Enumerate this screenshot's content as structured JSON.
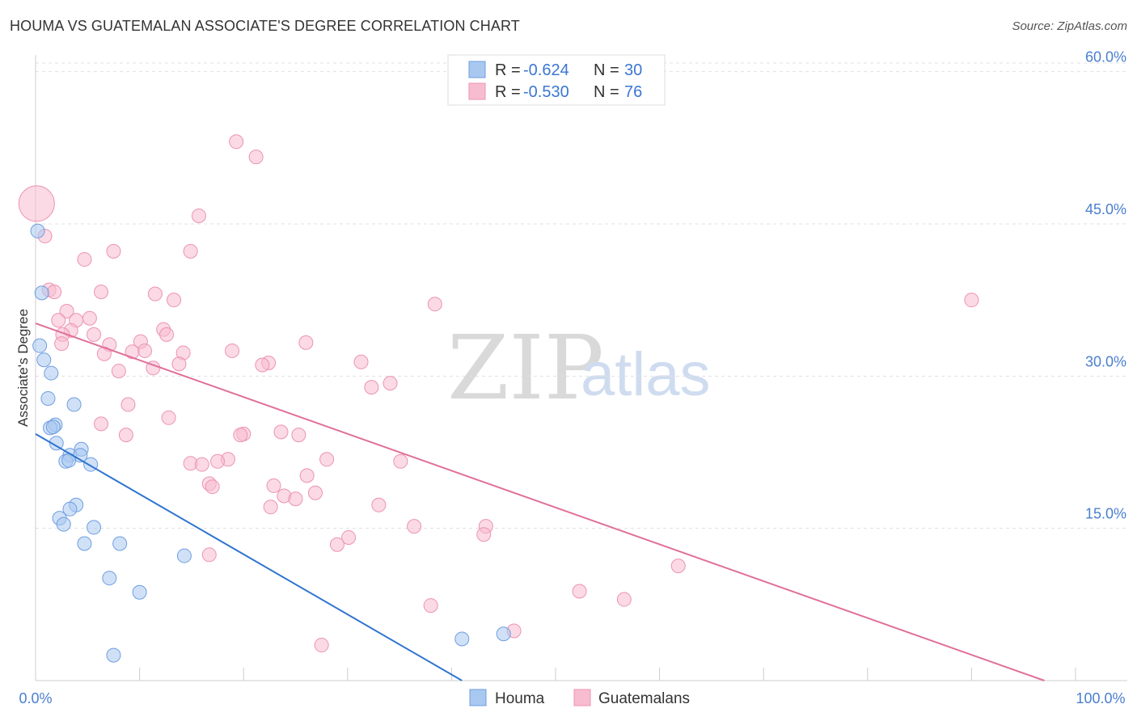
{
  "header": {
    "title": "HOUMA VS GUATEMALAN ASSOCIATE'S DEGREE CORRELATION CHART",
    "source": "Source: ZipAtlas.com"
  },
  "watermark": {
    "zip": "ZIP",
    "atlas": "atlas"
  },
  "legend": {
    "rows": [
      {
        "r_label": "R =",
        "r_value": "-0.624",
        "n_label": "N =",
        "n_value": "30",
        "color": "#a9c8f0"
      },
      {
        "r_label": "R =",
        "r_value": "-0.530",
        "n_label": "N =",
        "n_value": "76",
        "color": "#f7bcd0"
      }
    ]
  },
  "bottom_legend": {
    "houma": "Houma",
    "guatemalans": "Guatemalans"
  },
  "colors": {
    "houma_fill": "#a9c8f0",
    "houma_stroke": "#6f9ee0",
    "houma_line": "#2f74d0",
    "guat_fill": "#f7bcd0",
    "guat_stroke": "#ec93b2",
    "guat_line": "#e0709a",
    "grid": "#e0e0e0",
    "axis_text": "#4a7fcf"
  },
  "chart_data": {
    "type": "scatter",
    "title": "HOUMA VS GUATEMALAN ASSOCIATE'S DEGREE CORRELATION CHART",
    "xlabel": "",
    "ylabel": "Associate's Degree",
    "xlim": [
      0,
      100
    ],
    "ylim": [
      0,
      63
    ],
    "x_tick_labels": [
      "0.0%",
      "100.0%"
    ],
    "y_ticks": [
      15,
      30,
      45,
      60
    ],
    "y_tick_labels": [
      "15.0%",
      "30.0%",
      "45.0%",
      "60.0%"
    ],
    "series": [
      {
        "name": "Houma",
        "r": -0.624,
        "n": 30,
        "trend": {
          "x": [
            0,
            41
          ],
          "y": [
            24.3,
            0
          ]
        },
        "points": [
          [
            0.2,
            44.3
          ],
          [
            0.6,
            38.2
          ],
          [
            0.4,
            33.0
          ],
          [
            0.8,
            31.6
          ],
          [
            1.5,
            30.3
          ],
          [
            1.2,
            27.8
          ],
          [
            3.7,
            27.2
          ],
          [
            1.9,
            25.2
          ],
          [
            1.4,
            24.9
          ],
          [
            1.7,
            25.0
          ],
          [
            2.0,
            23.4
          ],
          [
            4.4,
            22.8
          ],
          [
            3.3,
            22.2
          ],
          [
            4.3,
            22.2
          ],
          [
            2.9,
            21.6
          ],
          [
            3.2,
            21.7
          ],
          [
            5.3,
            21.3
          ],
          [
            3.9,
            17.3
          ],
          [
            3.3,
            16.9
          ],
          [
            2.3,
            16.0
          ],
          [
            2.7,
            15.4
          ],
          [
            5.6,
            15.1
          ],
          [
            4.7,
            13.5
          ],
          [
            8.1,
            13.5
          ],
          [
            14.3,
            12.3
          ],
          [
            7.1,
            10.1
          ],
          [
            10.0,
            8.7
          ],
          [
            7.5,
            2.5
          ],
          [
            41.0,
            4.1
          ],
          [
            45.0,
            4.6
          ]
        ]
      },
      {
        "name": "Guatemalans",
        "r": -0.53,
        "n": 76,
        "trend": {
          "x": [
            0,
            97
          ],
          "y": [
            35.2,
            0
          ]
        },
        "points": [
          [
            0.1,
            47.0
          ],
          [
            0.9,
            43.8
          ],
          [
            19.3,
            53.1
          ],
          [
            21.2,
            51.6
          ],
          [
            15.7,
            45.8
          ],
          [
            14.9,
            42.3
          ],
          [
            7.5,
            42.3
          ],
          [
            4.7,
            41.5
          ],
          [
            1.3,
            38.5
          ],
          [
            1.8,
            38.3
          ],
          [
            6.3,
            38.3
          ],
          [
            11.5,
            38.1
          ],
          [
            13.3,
            37.5
          ],
          [
            38.4,
            37.1
          ],
          [
            90.0,
            37.5
          ],
          [
            3.0,
            36.4
          ],
          [
            5.2,
            35.7
          ],
          [
            2.2,
            35.5
          ],
          [
            3.9,
            35.5
          ],
          [
            12.3,
            34.6
          ],
          [
            3.4,
            34.5
          ],
          [
            2.6,
            34.1
          ],
          [
            5.6,
            34.1
          ],
          [
            12.6,
            34.1
          ],
          [
            10.1,
            33.4
          ],
          [
            7.1,
            33.1
          ],
          [
            2.5,
            33.2
          ],
          [
            26.0,
            33.3
          ],
          [
            10.5,
            32.5
          ],
          [
            9.3,
            32.4
          ],
          [
            18.9,
            32.5
          ],
          [
            14.2,
            32.3
          ],
          [
            6.6,
            32.2
          ],
          [
            31.3,
            31.4
          ],
          [
            22.4,
            31.3
          ],
          [
            13.8,
            31.2
          ],
          [
            21.8,
            31.1
          ],
          [
            11.3,
            30.8
          ],
          [
            8.0,
            30.5
          ],
          [
            34.1,
            29.3
          ],
          [
            32.3,
            28.9
          ],
          [
            8.9,
            27.2
          ],
          [
            6.3,
            25.3
          ],
          [
            12.8,
            25.9
          ],
          [
            8.7,
            24.2
          ],
          [
            23.6,
            24.5
          ],
          [
            20.0,
            24.3
          ],
          [
            19.7,
            24.2
          ],
          [
            25.3,
            24.2
          ],
          [
            18.5,
            21.8
          ],
          [
            14.9,
            21.4
          ],
          [
            28.0,
            21.8
          ],
          [
            35.1,
            21.6
          ],
          [
            16.0,
            21.3
          ],
          [
            17.5,
            21.6
          ],
          [
            26.1,
            20.2
          ],
          [
            16.7,
            19.4
          ],
          [
            17.0,
            19.1
          ],
          [
            22.9,
            19.2
          ],
          [
            26.9,
            18.5
          ],
          [
            23.9,
            18.2
          ],
          [
            25.0,
            17.9
          ],
          [
            22.6,
            17.1
          ],
          [
            33.0,
            17.3
          ],
          [
            36.4,
            15.2
          ],
          [
            43.3,
            15.2
          ],
          [
            43.1,
            14.4
          ],
          [
            30.1,
            14.1
          ],
          [
            29.0,
            13.4
          ],
          [
            16.7,
            12.4
          ],
          [
            61.8,
            11.3
          ],
          [
            52.3,
            8.8
          ],
          [
            38.0,
            7.4
          ],
          [
            56.6,
            8.0
          ],
          [
            46.0,
            4.9
          ],
          [
            27.5,
            3.5
          ]
        ]
      }
    ]
  }
}
